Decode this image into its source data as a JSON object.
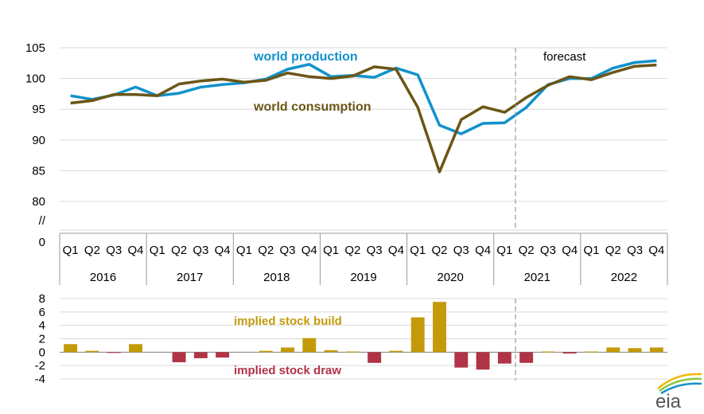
{
  "chart_data": [
    {
      "type": "line",
      "title": "",
      "categories": [
        "Q1",
        "Q2",
        "Q3",
        "Q4",
        "Q1",
        "Q2",
        "Q3",
        "Q4",
        "Q1",
        "Q2",
        "Q3",
        "Q4",
        "Q1",
        "Q2",
        "Q3",
        "Q4",
        "Q1",
        "Q2",
        "Q3",
        "Q4",
        "Q1",
        "Q2",
        "Q3",
        "Q4",
        "Q1",
        "Q2",
        "Q3",
        "Q4"
      ],
      "years": [
        "2016",
        "2017",
        "2018",
        "2019",
        "2020",
        "2021",
        "2022"
      ],
      "y_ticks": [
        "105",
        "100",
        "95",
        "90",
        "85",
        "80",
        "//",
        "0"
      ],
      "ylim": [
        75,
        105
      ],
      "axis_break": true,
      "grid": true,
      "forecast_label": "forecast",
      "forecast_start_index": 21,
      "series": [
        {
          "name": "world production",
          "color": "#1192cc",
          "values": [
            97.2,
            96.6,
            97.3,
            98.6,
            97.2,
            97.6,
            98.6,
            99.0,
            99.3,
            99.9,
            101.5,
            102.3,
            100.3,
            100.5,
            100.2,
            101.7,
            100.6,
            92.4,
            91.0,
            92.7,
            92.8,
            95.3,
            99.0,
            100.0,
            100.0,
            101.7,
            102.6,
            102.9
          ]
        },
        {
          "name": "world consumption",
          "color": "#6b5616",
          "values": [
            96.0,
            96.4,
            97.4,
            97.4,
            97.2,
            99.1,
            99.6,
            99.9,
            99.4,
            99.7,
            100.9,
            100.3,
            100.0,
            100.4,
            101.9,
            101.5,
            95.3,
            84.8,
            93.3,
            95.4,
            94.5,
            96.9,
            98.9,
            100.3,
            99.8,
            101.0,
            102.0,
            102.2
          ]
        }
      ]
    },
    {
      "type": "bar",
      "title": "",
      "y_ticks": [
        "8",
        "6",
        "4",
        "2",
        "0",
        "-2",
        "-4"
      ],
      "ylim": [
        -4,
        8
      ],
      "grid": true,
      "values": [
        1.2,
        0.2,
        -0.1,
        1.2,
        0.0,
        -1.5,
        -0.9,
        -0.8,
        0.0,
        0.2,
        0.7,
        2.1,
        0.3,
        0.1,
        -1.6,
        0.2,
        5.2,
        7.5,
        -2.3,
        -2.6,
        -1.7,
        -1.6,
        0.1,
        -0.2,
        0.1,
        0.7,
        0.6,
        0.7
      ],
      "build_label": "implied stock  build",
      "draw_label": "implied stock draw",
      "build_color": "#c49a0a",
      "draw_color": "#b03346",
      "forecast_start_index": 21
    }
  ],
  "logo": {
    "text": "eia",
    "colors": [
      "#1192cc",
      "#8cc63f",
      "#f2b705"
    ]
  }
}
